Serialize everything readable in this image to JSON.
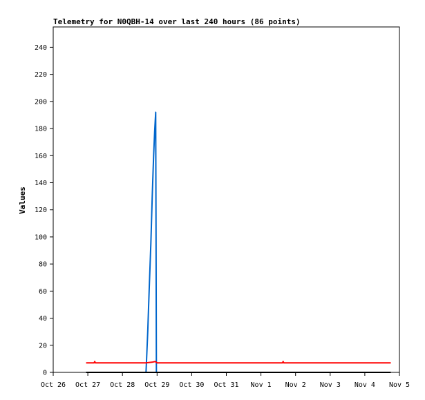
{
  "chart_data": {
    "type": "line",
    "title": "Telemetry for N0QBH-14 over last 240 hours (86 points)",
    "xlabel": "",
    "ylabel": "Values",
    "x_tick_labels": [
      "Oct 26",
      "Oct 27",
      "Oct 28",
      "Oct 29",
      "Oct 30",
      "Oct 31",
      "Nov 1",
      "Nov 2",
      "Nov 3",
      "Nov 4",
      "Nov 5"
    ],
    "x_unit": "days since Oct 26 00:00",
    "xlim": [
      0,
      10
    ],
    "y_ticks": [
      0,
      20,
      40,
      60,
      80,
      100,
      120,
      140,
      160,
      180,
      200,
      220,
      240
    ],
    "ylim": [
      0,
      255
    ],
    "grid": false,
    "legend": "none",
    "series": [
      {
        "color": "#0066cc",
        "x": [
          0.95,
          2.68,
          2.73,
          2.77,
          2.82,
          2.86,
          2.9,
          2.93,
          2.96,
          2.97,
          2.98,
          2.99,
          4.0,
          9.75
        ],
        "values": [
          0,
          0,
          30,
          60,
          95,
          130,
          160,
          178,
          192,
          100,
          0,
          0,
          0,
          0
        ]
      },
      {
        "color": "#ff0000",
        "x": [
          0.95,
          1.18,
          1.2,
          1.22,
          2.68,
          2.85,
          2.95,
          3.0,
          6.62,
          6.64,
          6.66,
          9.75
        ],
        "values": [
          7,
          7,
          8,
          7,
          7,
          7.5,
          8,
          7,
          7,
          8,
          7,
          7
        ]
      },
      {
        "color": "#000000",
        "x": [
          0.95,
          9.75
        ],
        "values": [
          0,
          0
        ]
      }
    ]
  }
}
